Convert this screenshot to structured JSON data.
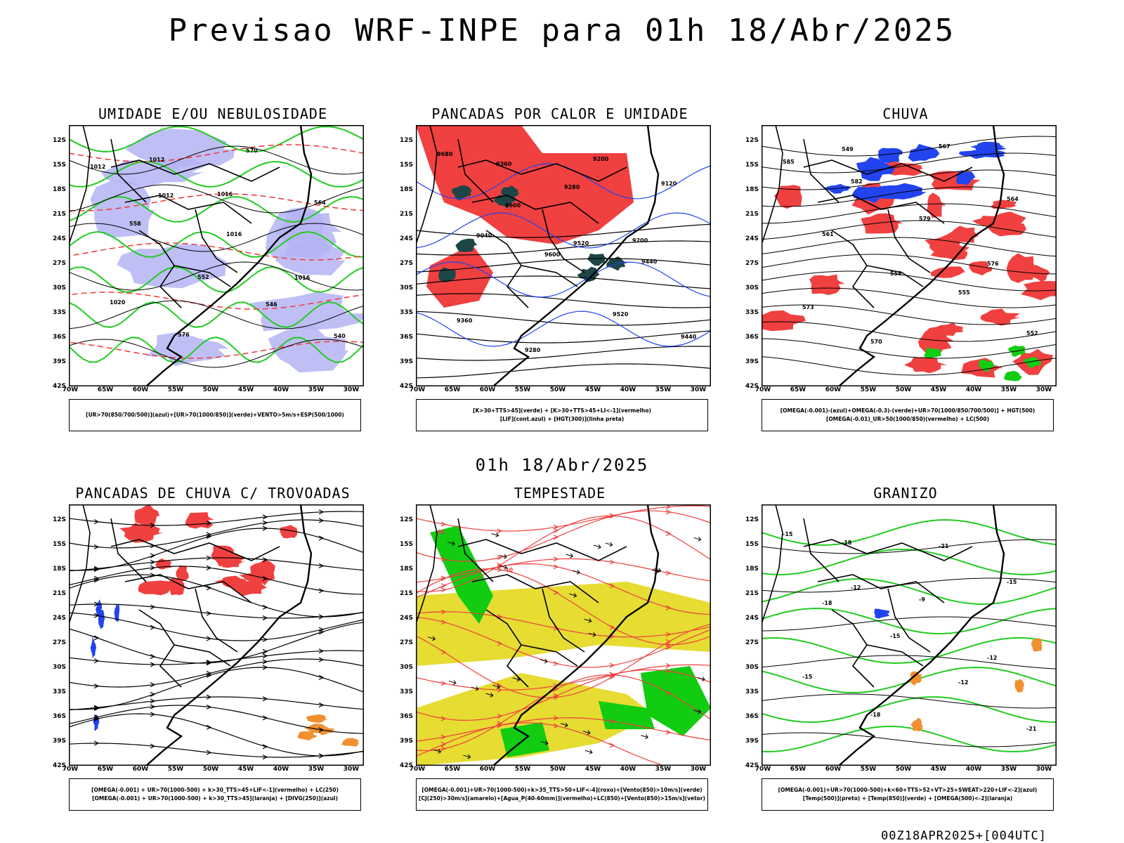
{
  "header": {
    "title": "Previsao WRF-INPE  para 01h 18/Abr/2025",
    "mid_title": "01h 18/Abr/2025",
    "footer": "00Z18APR2025+[004UTC]"
  },
  "axes": {
    "lat": [
      "12S",
      "15S",
      "18S",
      "21S",
      "24S",
      "27S",
      "30S",
      "33S",
      "36S",
      "39S",
      "42S"
    ],
    "lon": [
      "70W",
      "65W",
      "60W",
      "55W",
      "50W",
      "45W",
      "40W",
      "35W",
      "30W"
    ]
  },
  "colors": {
    "blue_fill": "#b4b4f5",
    "green_line": "#22cc22",
    "red_fill": "#f04040",
    "dark_teal": "#1e4646",
    "yellow_fill": "#e6dc32",
    "green_fill": "#11cc11",
    "orange": "#f09030",
    "blue": "#2244ee"
  },
  "panels": [
    {
      "id": "umidade",
      "title": "UMIDADE E/OU NEBULOSIDADE",
      "legend": [
        "[UR>70(850/700/500)](azul)+[UR>70(1000/850)](verde)+VENTO>5m/s+ESP(500/1000)"
      ],
      "contour_labels": [
        "1012",
        "1012",
        "1016",
        "1016",
        "1020",
        "576",
        "570",
        "564",
        "558",
        "552",
        "546",
        "540",
        "1012",
        "1016"
      ]
    },
    {
      "id": "pancadas-calor",
      "title": "PANCADAS POR CALOR E UMIDADE",
      "legend": [
        "[K>30+TTS>45](verde) + [K>30+TTS>45+LI<-1](vermelho)",
        "[LIF](cont.azul) + [HGT(300)](linha preta)"
      ],
      "contour_labels": [
        "9680",
        "9600",
        "9520",
        "9440",
        "9360",
        "9280",
        "9200",
        "9120",
        "9040",
        "9600",
        "9520",
        "9440",
        "9360",
        "9280",
        "9200"
      ]
    },
    {
      "id": "chuva",
      "title": "CHUVA",
      "legend": [
        "[OMEGA(-0.001)-(azul)+OMEGA(-0.3)-(verde)+UR>70(1000/850/700/500)] + HGT(500)",
        "[OMEGA(-0.01)_UR>50(1000/850)(vermelho) + LC(500)"
      ],
      "contour_labels": [
        "585",
        "582",
        "579",
        "576",
        "573",
        "570",
        "567",
        "564",
        "561",
        "558",
        "555",
        "552",
        "549"
      ]
    },
    {
      "id": "pancadas-trovoadas",
      "title": "PANCADAS DE CHUVA C/ TROVOADAS",
      "legend": [
        "[OMEGA(-0.001) + UR>70(1000-500) + k>30_TTS>45+LIF<-1](vermelho) + LC(250)",
        "[OMEGA(-0.001) + UR>70(1000-500) + k>30_TTS>45](laranja) + [DIVG(250)](azul)"
      ],
      "contour_labels": []
    },
    {
      "id": "tempestade",
      "title": "TEMPESTADE",
      "legend": [
        "[OMEGA(-0.001)+UR>70(1000-500)+k>35_TTS>50+LIF<-4](roxo)+[Vento(850)>10m/s](verde)",
        "[CJ(250)>30m/s](amarelo)+[Agua_P(40-60mm)](vermelho)+LC(850)+[Vento(850)>15m/s](vetor)"
      ],
      "contour_labels": [
        "40",
        "40"
      ]
    },
    {
      "id": "granizo",
      "title": "GRANIZO",
      "legend": [
        "[OMEGA(-0.001)+UR>70(1000-500)+k<60+TTS>52+VT>25+SWEAT>220+LIF<-2](azul)",
        "[Temp(500)](preto) + [Temp(850)](verde) + [OMEGA(500)<-2](laranja)"
      ],
      "contour_labels": [
        "-15",
        "-12",
        "-9",
        "-12",
        "-15",
        "-18",
        "-21",
        "-15",
        "-18",
        "-15",
        "-12",
        "-21",
        "-18"
      ]
    }
  ]
}
